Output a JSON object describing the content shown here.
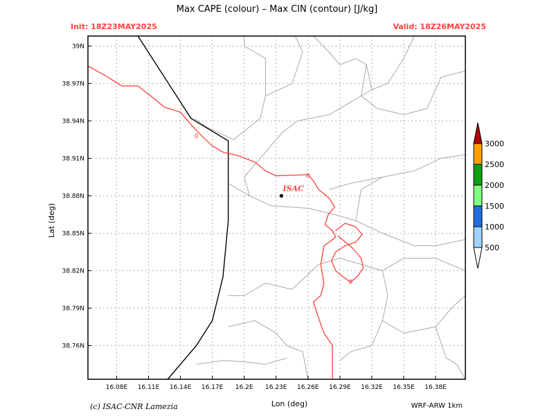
{
  "header": {
    "title": "Max CAPE (colour) – Max CIN (contour) [J/kg]",
    "init": "Init: 18Z23MAY2025",
    "valid": "Valid: 18Z26MAY2025"
  },
  "footer": {
    "credit": "(c) ISAC-CNR Lamezia",
    "model": "WRF-ARW 1km"
  },
  "chart_data": {
    "type": "map",
    "title": "Max CAPE (colour) – Max CIN (contour) [J/kg]",
    "xlabel": "Lon (deg)",
    "ylabel": "Lat (deg)",
    "xlim": [
      16.053,
      16.408
    ],
    "ylim": [
      38.733,
      39.008
    ],
    "x_ticks": [
      16.08,
      16.11,
      16.14,
      16.17,
      16.2,
      16.23,
      16.26,
      16.29,
      16.32,
      16.35,
      16.38
    ],
    "x_tick_labels": [
      "16.08E",
      "16.11E",
      "16.14E",
      "16.17E",
      "16.2E",
      "16.23E",
      "16.26E",
      "16.29E",
      "16.32E",
      "16.35E",
      "16.38E"
    ],
    "y_ticks": [
      38.76,
      38.79,
      38.82,
      38.85,
      38.88,
      38.91,
      38.94,
      38.97,
      39.0
    ],
    "y_tick_labels": [
      "38.76N",
      "38.79N",
      "38.82N",
      "38.85N",
      "38.88N",
      "38.91N",
      "38.94N",
      "38.97N",
      "39N"
    ],
    "grid": true,
    "colorbar": {
      "levels": [
        "500",
        "1000",
        "1500",
        "2000",
        "2500",
        "3000"
      ],
      "colors": [
        "#a0d2ff",
        "#1e6ee0",
        "#80ff80",
        "#10a010",
        "#ffa000",
        "#b00000"
      ],
      "low_color": "#ffffff"
    },
    "station": {
      "label": "ISAC",
      "lon": 16.235,
      "lat": 38.88,
      "color": "#ff4040"
    },
    "cin_contour": {
      "color": "#ff3030",
      "label": "0",
      "label_points": [
        [
          16.155,
          38.928
        ],
        [
          16.26,
          38.896
        ],
        [
          16.3,
          38.811
        ]
      ],
      "lines": [
        [
          [
            16.053,
            38.984
          ],
          [
            16.07,
            38.976
          ],
          [
            16.085,
            38.968
          ],
          [
            16.1,
            38.968
          ],
          [
            16.115,
            38.958
          ],
          [
            16.125,
            38.951
          ],
          [
            16.14,
            38.947
          ],
          [
            16.15,
            38.937
          ],
          [
            16.16,
            38.928
          ],
          [
            16.17,
            38.92
          ],
          [
            16.18,
            38.915
          ],
          [
            16.195,
            38.912
          ],
          [
            16.21,
            38.907
          ],
          [
            16.22,
            38.9
          ],
          [
            16.23,
            38.896
          ],
          [
            16.26,
            38.897
          ],
          [
            16.265,
            38.892
          ],
          [
            16.27,
            38.885
          ],
          [
            16.28,
            38.878
          ],
          [
            16.285,
            38.871
          ],
          [
            16.279,
            38.865
          ],
          [
            16.276,
            38.857
          ],
          [
            16.283,
            38.852
          ],
          [
            16.286,
            38.847
          ],
          [
            16.28,
            38.843
          ],
          [
            16.275,
            38.84
          ],
          [
            16.272,
            38.825
          ],
          [
            16.275,
            38.81
          ],
          [
            16.272,
            38.8
          ],
          [
            16.265,
            38.795
          ],
          [
            16.27,
            38.782
          ],
          [
            16.275,
            38.77
          ],
          [
            16.283,
            38.76
          ],
          [
            16.283,
            38.74
          ],
          [
            16.283,
            38.733
          ]
        ],
        [
          [
            16.286,
            38.852
          ],
          [
            16.295,
            38.858
          ],
          [
            16.305,
            38.855
          ],
          [
            16.311,
            38.849
          ],
          [
            16.305,
            38.843
          ],
          [
            16.295,
            38.84
          ],
          [
            16.286,
            38.835
          ],
          [
            16.282,
            38.828
          ],
          [
            16.286,
            38.82
          ],
          [
            16.293,
            38.815
          ],
          [
            16.3,
            38.811
          ],
          [
            16.306,
            38.815
          ],
          [
            16.312,
            38.822
          ],
          [
            16.31,
            38.83
          ],
          [
            16.302,
            38.838
          ],
          [
            16.295,
            38.843
          ],
          [
            16.288,
            38.848
          ]
        ]
      ]
    },
    "country_border": [
      [
        16.1,
        39.008
      ],
      [
        16.125,
        38.975
      ],
      [
        16.15,
        38.942
      ],
      [
        16.185,
        38.924
      ],
      [
        16.185,
        38.86
      ],
      [
        16.18,
        38.815
      ],
      [
        16.17,
        38.78
      ],
      [
        16.155,
        38.76
      ],
      [
        16.135,
        38.74
      ],
      [
        16.128,
        38.733
      ]
    ],
    "admin_lines": [
      [
        [
          16.153,
          38.942
        ],
        [
          16.165,
          38.935
        ],
        [
          16.19,
          38.925
        ],
        [
          16.215,
          38.942
        ],
        [
          16.22,
          38.96
        ],
        [
          16.22,
          38.99
        ],
        [
          16.2,
          39.0
        ],
        [
          16.2,
          39.008
        ]
      ],
      [
        [
          16.22,
          38.96
        ],
        [
          16.245,
          38.97
        ],
        [
          16.255,
          38.995
        ],
        [
          16.248,
          39.008
        ]
      ],
      [
        [
          16.265,
          39.008
        ],
        [
          16.28,
          38.995
        ],
        [
          16.29,
          38.985
        ],
        [
          16.305,
          38.99
        ],
        [
          16.315,
          38.985
        ],
        [
          16.32,
          38.965
        ],
        [
          16.335,
          38.97
        ],
        [
          16.35,
          38.99
        ],
        [
          16.36,
          39.008
        ]
      ],
      [
        [
          16.315,
          38.985
        ],
        [
          16.31,
          38.96
        ],
        [
          16.325,
          38.95
        ],
        [
          16.35,
          38.945
        ],
        [
          16.372,
          38.95
        ],
        [
          16.385,
          38.975
        ],
        [
          16.408,
          38.98
        ]
      ],
      [
        [
          16.185,
          38.89
        ],
        [
          16.205,
          38.88
        ],
        [
          16.225,
          38.872
        ],
        [
          16.26,
          38.87
        ],
        [
          16.285,
          38.865
        ],
        [
          16.305,
          38.86
        ],
        [
          16.33,
          38.85
        ],
        [
          16.36,
          38.84
        ],
        [
          16.38,
          38.84
        ],
        [
          16.408,
          38.845
        ]
      ],
      [
        [
          16.28,
          38.885
        ],
        [
          16.3,
          38.89
        ],
        [
          16.33,
          38.895
        ],
        [
          16.36,
          38.9
        ],
        [
          16.385,
          38.91
        ],
        [
          16.408,
          38.913
        ]
      ],
      [
        [
          16.185,
          38.8
        ],
        [
          16.2,
          38.8
        ],
        [
          16.22,
          38.81
        ],
        [
          16.245,
          38.805
        ],
        [
          16.27,
          38.825
        ],
        [
          16.29,
          38.83
        ],
        [
          16.31,
          38.825
        ],
        [
          16.33,
          38.82
        ],
        [
          16.35,
          38.83
        ],
        [
          16.38,
          38.83
        ],
        [
          16.408,
          38.82
        ]
      ],
      [
        [
          16.185,
          38.775
        ],
        [
          16.21,
          38.78
        ],
        [
          16.23,
          38.77
        ],
        [
          16.24,
          38.76
        ],
        [
          16.255,
          38.755
        ],
        [
          16.26,
          38.733
        ]
      ],
      [
        [
          16.155,
          38.745
        ],
        [
          16.18,
          38.748
        ],
        [
          16.2,
          38.747
        ],
        [
          16.22,
          38.745
        ],
        [
          16.24,
          38.75
        ]
      ],
      [
        [
          16.33,
          38.82
        ],
        [
          16.335,
          38.8
        ],
        [
          16.33,
          38.78
        ],
        [
          16.32,
          38.76
        ],
        [
          16.3,
          38.755
        ],
        [
          16.29,
          38.748
        ]
      ],
      [
        [
          16.33,
          38.78
        ],
        [
          16.35,
          38.77
        ],
        [
          16.38,
          38.775
        ],
        [
          16.395,
          38.79
        ],
        [
          16.408,
          38.8
        ]
      ],
      [
        [
          16.38,
          38.775
        ],
        [
          16.39,
          38.75
        ],
        [
          16.4,
          38.745
        ],
        [
          16.408,
          38.733
        ]
      ],
      [
        [
          16.305,
          38.86
        ],
        [
          16.31,
          38.885
        ],
        [
          16.33,
          38.895
        ]
      ],
      [
        [
          16.205,
          38.88
        ],
        [
          16.2,
          38.895
        ],
        [
          16.215,
          38.91
        ],
        [
          16.235,
          38.93
        ],
        [
          16.25,
          38.94
        ],
        [
          16.28,
          38.945
        ],
        [
          16.32,
          38.965
        ]
      ]
    ]
  }
}
